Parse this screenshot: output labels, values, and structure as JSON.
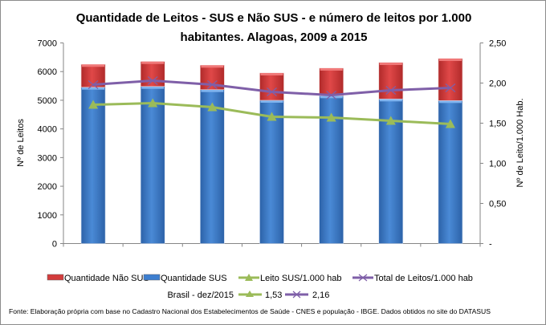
{
  "chart_data": {
    "type": "bar",
    "stacked": true,
    "title_line1": "Quantidade de Leitos - SUS e Não SUS - e número de leitos por 1.000",
    "title_line2": "habitantes. Alagoas, 2009 a 2015",
    "ylabel": "Nº de Leitos",
    "ylabel_right": "Nº de Leito/1.000 Hab.",
    "ylim": [
      0,
      7000
    ],
    "ylim_right": [
      0,
      2.5
    ],
    "yticks": [
      "0",
      "1000",
      "2000",
      "3000",
      "4000",
      "5000",
      "6000",
      "7000"
    ],
    "yticks_right": [
      "-",
      "0,50",
      "1,00",
      "1,50",
      "2,00",
      "2,50"
    ],
    "grid": false,
    "legend_position": "bottom",
    "series": [
      {
        "name": "Quantidade SUS",
        "kind": "bar",
        "axis": "left",
        "color": "#3d7fd0",
        "values": [
          5455,
          5483,
          5371,
          4998,
          5157,
          5045,
          4989
        ]
      },
      {
        "name": "Quantidade Não SUS",
        "kind": "bar",
        "axis": "left",
        "color": "#d33c3c",
        "values": [
          795,
          867,
          850,
          952,
          961,
          1269,
          1465
        ]
      },
      {
        "name": "Leito SUS/1.000 hab",
        "kind": "line",
        "marker": "triangle",
        "axis": "right",
        "color": "#9bbb59",
        "values": [
          1.73,
          1.75,
          1.7,
          1.58,
          1.57,
          1.53,
          1.49
        ]
      },
      {
        "name": "Total de Leitos/1.000 hab",
        "kind": "line",
        "marker": "x",
        "axis": "right",
        "color": "#7f5fa8",
        "values": [
          1.98,
          2.03,
          1.98,
          1.89,
          1.85,
          1.91,
          1.94
        ]
      }
    ],
    "reference": {
      "label": "Brasil -  dez/2015",
      "leito_sus": "1,53",
      "total_leitos": "2,16"
    },
    "source": "Fonte: Elaboração própria com base no  Cadastro Nacional dos Estabelecimentos de Saúde - CNES e população - IBGE. Dados obtidos no site do DATASUS"
  }
}
